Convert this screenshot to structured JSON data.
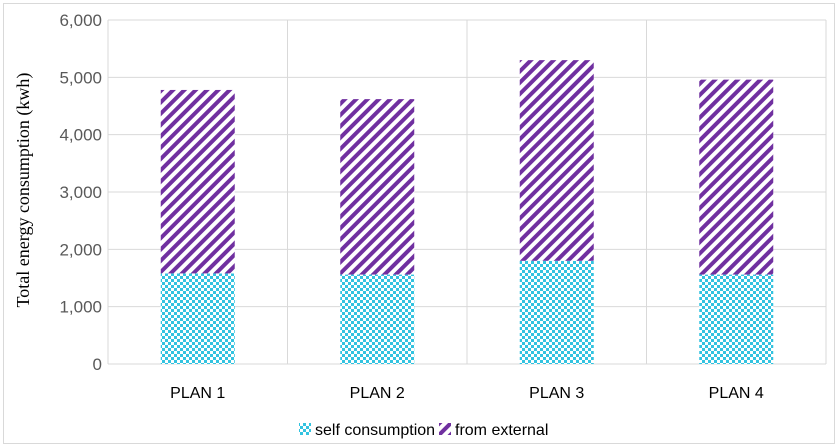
{
  "chart_data": {
    "type": "bar",
    "stacked": true,
    "categories": [
      "PLAN 1",
      "PLAN 2",
      "PLAN 3",
      "PLAN 4"
    ],
    "series": [
      {
        "name": "self consumption",
        "values": [
          1580,
          1560,
          1800,
          1560
        ],
        "color": "#33c3e0",
        "pattern": "checkerboard"
      },
      {
        "name": "from external",
        "values": [
          3200,
          3060,
          3500,
          3400
        ],
        "color": "#7030a0",
        "pattern": "diagonal-stripes"
      }
    ],
    "ylabel": "Total energy consumption (kwh)",
    "ylim": [
      0,
      6000
    ],
    "yticks": [
      "0",
      "1,000",
      "2,000",
      "3,000",
      "4,000",
      "5,000",
      "6,000"
    ],
    "grid": true,
    "legend_position": "bottom"
  }
}
